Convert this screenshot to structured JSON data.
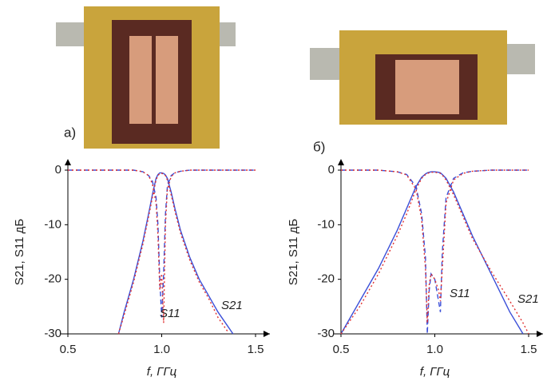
{
  "panels": [
    {
      "label": "а)"
    },
    {
      "label": "б)"
    }
  ],
  "chart_data": [
    {
      "type": "line",
      "ylabel": "S21, S11 дБ",
      "xlabel": "f, ГГц",
      "xlim": [
        0.5,
        1.5
      ],
      "ylim": [
        -30,
        0
      ],
      "xticks": [
        0.5,
        {
          "value": 1,
          "label": "1.0"
        },
        1.5
      ],
      "yticks": [
        -30,
        -20,
        -10,
        0
      ],
      "annotations": [
        "S11",
        "S21"
      ],
      "x": [
        0.5,
        0.6,
        0.7,
        0.77,
        0.8,
        0.85,
        0.9,
        0.93,
        0.95,
        0.97,
        0.98,
        0.99,
        1.0,
        1.01,
        1.02,
        1.03,
        1.05,
        1.07,
        1.1,
        1.15,
        1.2,
        1.25,
        1.3,
        1.35,
        1.38,
        1.4,
        1.5
      ],
      "series": [
        {
          "color": "#3b4fd8",
          "line_style": "solid",
          "values": [
            null,
            null,
            null,
            -30,
            -26,
            -20,
            -13,
            -8,
            -4.5,
            -1.5,
            -0.8,
            -0.5,
            -0.5,
            -0.6,
            -0.9,
            -1.5,
            -4,
            -7,
            -11,
            -16,
            -20,
            -23,
            -26,
            -28.5,
            -30,
            null,
            null
          ]
        },
        {
          "color": "#e03030",
          "line_style": "dotted",
          "values": [
            null,
            null,
            null,
            -30,
            -26.5,
            -20.5,
            -13.5,
            -8.5,
            -5,
            -1.8,
            -1,
            -0.6,
            -0.6,
            -0.7,
            -1,
            -1.8,
            -4.5,
            -7.5,
            -11.5,
            -16.5,
            -20.5,
            -23.5,
            -27,
            -29.5,
            null,
            null,
            null
          ]
        },
        {
          "color": "#3b4fd8",
          "line_style": "dashed",
          "values": [
            0,
            0,
            0,
            0,
            0,
            0,
            -0.3,
            -1,
            -2,
            -5,
            -10,
            -20,
            -27,
            -19,
            -8,
            -3,
            -1,
            -0.5,
            -0.2,
            0,
            0,
            0,
            0,
            0,
            0,
            0,
            0
          ]
        },
        {
          "color": "#e03030",
          "line_style": "dotted",
          "values": [
            0,
            0,
            0,
            0,
            0,
            0,
            -0.3,
            -1,
            -2.5,
            -6,
            -12,
            -22,
            -19,
            -28,
            -10,
            -3.5,
            -1.2,
            -0.5,
            -0.2,
            0,
            0,
            0,
            0,
            0,
            0,
            0,
            0
          ]
        }
      ]
    },
    {
      "type": "line",
      "ylabel": "S21, S11 дБ",
      "xlabel": "f, ГГц",
      "xlim": [
        0.5,
        1.5
      ],
      "ylim": [
        -30,
        0
      ],
      "xticks": [
        0.5,
        {
          "value": 1,
          "label": "1.0"
        },
        1.5
      ],
      "yticks": [
        -30,
        -20,
        -10,
        0
      ],
      "annotations": [
        "S11",
        "S21"
      ],
      "x": [
        0.5,
        0.6,
        0.7,
        0.8,
        0.85,
        0.9,
        0.93,
        0.95,
        0.96,
        0.97,
        0.98,
        1.0,
        1.02,
        1.03,
        1.04,
        1.06,
        1.1,
        1.15,
        1.2,
        1.3,
        1.4,
        1.47,
        1.5
      ],
      "series": [
        {
          "color": "#3b4fd8",
          "line_style": "solid",
          "values": [
            -30,
            -24,
            -18,
            -11,
            -7,
            -3,
            -1.3,
            -0.7,
            -0.5,
            -0.4,
            -0.3,
            -0.3,
            -0.4,
            -0.5,
            -0.8,
            -1.5,
            -4,
            -8,
            -12,
            -19,
            -26,
            -30,
            null
          ]
        },
        {
          "color": "#e03030",
          "line_style": "dotted",
          "values": [
            -30,
            -25,
            -19,
            -12,
            -8,
            -3.5,
            -1.5,
            -0.8,
            -0.6,
            -0.5,
            -0.4,
            -0.4,
            -0.5,
            -0.6,
            -0.9,
            -1.8,
            -4.5,
            -8.5,
            -12.5,
            -18.5,
            -24,
            -28,
            -30
          ]
        },
        {
          "color": "#3b4fd8",
          "line_style": "dashed",
          "values": [
            0,
            0,
            0,
            -0.3,
            -0.8,
            -3,
            -8,
            -16,
            -30,
            -22,
            -19,
            -20,
            -24,
            -26,
            -15,
            -5,
            -1.5,
            -0.5,
            -0.2,
            0,
            0,
            0,
            0
          ]
        },
        {
          "color": "#e03030",
          "line_style": "dotted",
          "values": [
            0,
            0,
            0,
            -0.3,
            -0.9,
            -3.5,
            -9,
            -18,
            -28,
            -21,
            -19,
            -20,
            -22,
            -24,
            -18,
            -6,
            -1.8,
            -0.6,
            -0.2,
            0,
            0,
            0,
            0
          ]
        }
      ]
    }
  ]
}
